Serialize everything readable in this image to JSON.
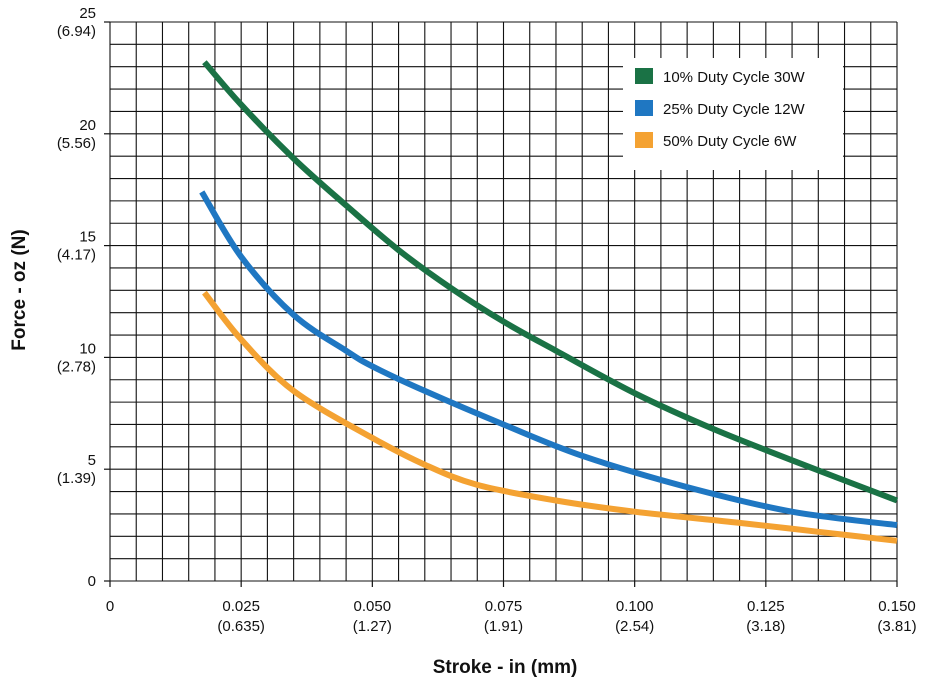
{
  "chart_data": {
    "type": "line",
    "xlabel": "Stroke - in (mm)",
    "ylabel": "Force - oz (N)",
    "xlim": [
      0,
      0.15
    ],
    "ylim": [
      0,
      25
    ],
    "grid": true,
    "x_ticks": [
      {
        "value": 0,
        "label": "0",
        "sub": ""
      },
      {
        "value": 0.025,
        "label": "0.025",
        "sub": "(0.635)"
      },
      {
        "value": 0.05,
        "label": "0.050",
        "sub": "(1.27)"
      },
      {
        "value": 0.075,
        "label": "0.075",
        "sub": "(1.91)"
      },
      {
        "value": 0.1,
        "label": "0.100",
        "sub": "(2.54)"
      },
      {
        "value": 0.125,
        "label": "0.125",
        "sub": "(3.18)"
      },
      {
        "value": 0.15,
        "label": "0.150",
        "sub": "(3.81)"
      }
    ],
    "y_ticks": [
      {
        "value": 0,
        "label": "0",
        "sub": ""
      },
      {
        "value": 5,
        "label": "5",
        "sub": "(1.39)"
      },
      {
        "value": 10,
        "label": "10",
        "sub": "(2.78)"
      },
      {
        "value": 15,
        "label": "15",
        "sub": "(4.17)"
      },
      {
        "value": 20,
        "label": "20",
        "sub": "(5.56)"
      },
      {
        "value": 25,
        "label": "25",
        "sub": "(6.94)"
      }
    ],
    "legend_position": "top-right",
    "series": [
      {
        "name": "10% Duty Cycle 30W",
        "color": "#1a7245",
        "x": [
          0.018,
          0.025,
          0.035,
          0.045,
          0.055,
          0.065,
          0.075,
          0.085,
          0.1,
          0.115,
          0.13,
          0.15
        ],
        "y": [
          23.2,
          21.3,
          18.9,
          16.8,
          14.8,
          13.1,
          11.6,
          10.3,
          8.4,
          6.8,
          5.4,
          3.6
        ]
      },
      {
        "name": "25% Duty Cycle 12W",
        "color": "#1f77c2",
        "x": [
          0.0175,
          0.025,
          0.035,
          0.045,
          0.05,
          0.06,
          0.075,
          0.09,
          0.11,
          0.13,
          0.15
        ],
        "y": [
          17.4,
          14.5,
          11.9,
          10.3,
          9.6,
          8.5,
          7.0,
          5.6,
          4.2,
          3.1,
          2.5
        ]
      },
      {
        "name": "50% Duty Cycle 6W",
        "color": "#f4a232",
        "x": [
          0.018,
          0.025,
          0.035,
          0.05,
          0.06,
          0.07,
          0.085,
          0.1,
          0.12,
          0.135,
          0.15
        ],
        "y": [
          12.9,
          10.8,
          8.5,
          6.4,
          5.2,
          4.3,
          3.6,
          3.1,
          2.6,
          2.2,
          1.8
        ]
      }
    ]
  }
}
